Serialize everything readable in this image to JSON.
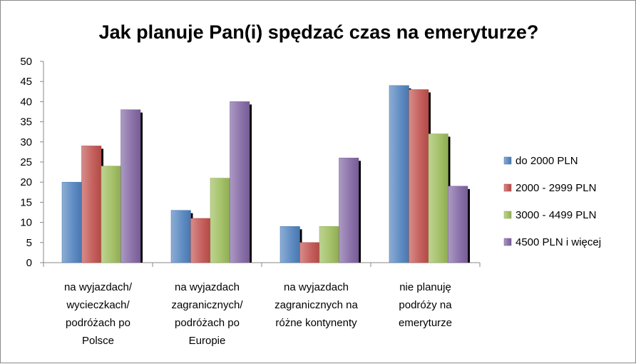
{
  "chart_data": {
    "type": "bar",
    "title": "Jak planuje Pan(i) spędzać czas na emeryturze?",
    "categories": [
      [
        "na wyjazdach/",
        "wycieczkach/",
        "podróżach po",
        "Polsce"
      ],
      [
        "na wyjazdach",
        "zagranicznych/",
        "podróżach po",
        "Europie"
      ],
      [
        "na wyjazdach",
        "zagranicznych  na",
        "różne kontynenty"
      ],
      [
        "nie planuję",
        "podróży na",
        "emeryturze"
      ]
    ],
    "series": [
      {
        "name": "do 2000 PLN",
        "values": [
          20,
          13,
          9,
          44
        ],
        "color": "#4f81bd"
      },
      {
        "name": "2000 - 2999 PLN",
        "values": [
          29,
          11,
          5,
          43
        ],
        "color": "#c0504d"
      },
      {
        "name": "3000 - 4499 PLN",
        "values": [
          24,
          21,
          9,
          32
        ],
        "color": "#9bbb59"
      },
      {
        "name": "4500 PLN i więcej",
        "values": [
          38,
          40,
          26,
          19
        ],
        "color": "#8064a2"
      }
    ],
    "ylim": [
      0,
      50
    ],
    "yticks": [
      "0",
      "5",
      "10",
      "15",
      "20",
      "25",
      "30",
      "35",
      "40",
      "45",
      "50"
    ],
    "grid": false,
    "legend_position": "right"
  }
}
